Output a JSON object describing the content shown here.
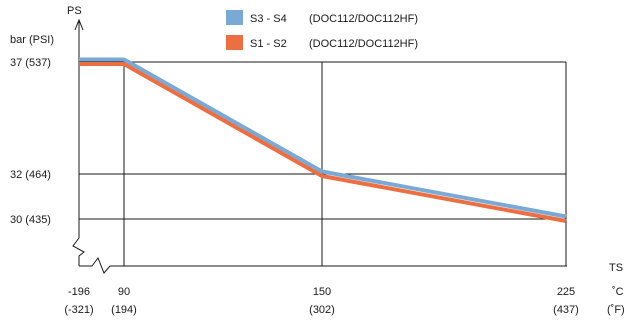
{
  "chart_data": {
    "type": "line",
    "y_axis": {
      "symbol": "PS",
      "unit": "bar (PSI)"
    },
    "x_axis": {
      "symbol": "TS"
    },
    "yticks": [
      {
        "value": 37,
        "label": "37  (537)"
      },
      {
        "value": 32,
        "label": "32  (464)"
      },
      {
        "value": 30,
        "label": "30  (435)"
      }
    ],
    "xticks": [
      {
        "value": -196,
        "label_c": "-196",
        "label_f": "(-321)"
      },
      {
        "value": 90,
        "label_c": "90",
        "label_f": "(194)"
      },
      {
        "value": 150,
        "label_c": "150",
        "label_f": "(302)"
      },
      {
        "value": 225,
        "label_c": "225",
        "label_f": "(437)"
      }
    ],
    "unit_c": "˚C",
    "unit_f": "(˚F)",
    "series": [
      {
        "name": "S3 - S4",
        "label_suffix": "(DOC112/DOC112HF)",
        "color": "#7aa9d6",
        "x": [
          -196,
          90,
          150,
          225
        ],
        "y": [
          37,
          37,
          32,
          30
        ]
      },
      {
        "name": "S1 - S2",
        "label_suffix": "(DOC112/DOC112HF)",
        "color": "#ec6e43",
        "x": [
          -196,
          90,
          150,
          225
        ],
        "y": [
          37,
          37,
          32,
          30
        ]
      }
    ],
    "grid": true,
    "axis_breaks": [
      "x",
      "y"
    ],
    "legend_position": "top"
  }
}
